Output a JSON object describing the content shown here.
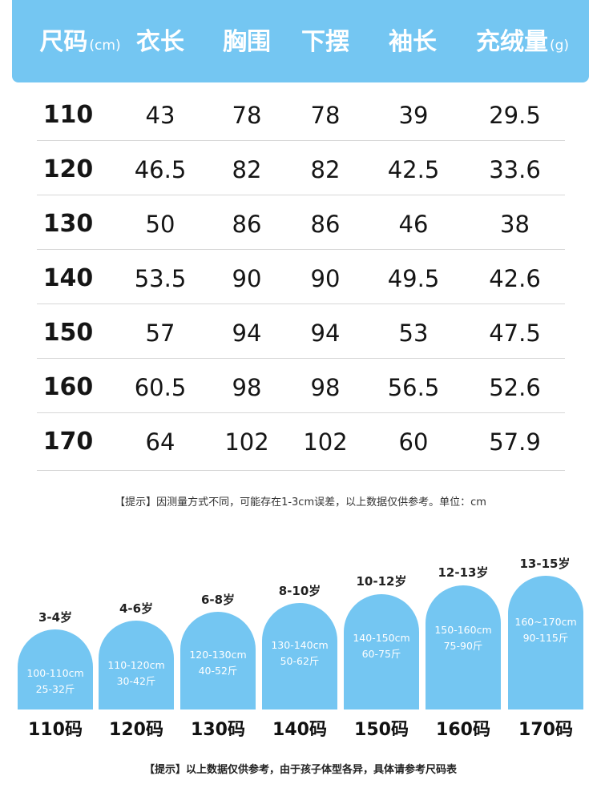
{
  "header": {
    "columns": [
      {
        "label": "尺码",
        "unit": "(cm)"
      },
      {
        "label": "衣长",
        "unit": ""
      },
      {
        "label": "胸围",
        "unit": ""
      },
      {
        "label": "下摆",
        "unit": ""
      },
      {
        "label": "袖长",
        "unit": ""
      },
      {
        "label": "充绒量",
        "unit": "(g)"
      }
    ]
  },
  "table": {
    "rows": [
      [
        "110",
        "43",
        "78",
        "78",
        "39",
        "29.5"
      ],
      [
        "120",
        "46.5",
        "82",
        "82",
        "42.5",
        "33.6"
      ],
      [
        "130",
        "50",
        "86",
        "86",
        "46",
        "38"
      ],
      [
        "140",
        "53.5",
        "90",
        "90",
        "49.5",
        "42.6"
      ],
      [
        "150",
        "57",
        "94",
        "94",
        "53",
        "47.5"
      ],
      [
        "160",
        "60.5",
        "98",
        "98",
        "56.5",
        "52.6"
      ],
      [
        "170",
        "64",
        "102",
        "102",
        "60",
        "57.9"
      ]
    ]
  },
  "note1": "【提示】因测量方式不同，可能存在1-3cm误差，以上数据仅供参考。单位：cm",
  "guide": {
    "items": [
      {
        "age": "3-4岁",
        "height": "100-110cm",
        "weight": "25-32斤",
        "code": "110码"
      },
      {
        "age": "4-6岁",
        "height": "110-120cm",
        "weight": "30-42斤",
        "code": "120码"
      },
      {
        "age": "6-8岁",
        "height": "120-130cm",
        "weight": "40-52斤",
        "code": "130码"
      },
      {
        "age": "8-10岁",
        "height": "130-140cm",
        "weight": "50-62斤",
        "code": "140码"
      },
      {
        "age": "10-12岁",
        "height": "140-150cm",
        "weight": "60-75斤",
        "code": "150码"
      },
      {
        "age": "12-13岁",
        "height": "150-160cm",
        "weight": "75-90斤",
        "code": "160码"
      },
      {
        "age": "13-15岁",
        "height": "160~170cm",
        "weight": "90-115斤",
        "code": "170码"
      }
    ]
  },
  "note2": "【提示】以上数据仅供参考，由于孩子体型各异，具体请参考尺码表",
  "colors": {
    "accent": "#74c6f2",
    "text": "#111111"
  }
}
